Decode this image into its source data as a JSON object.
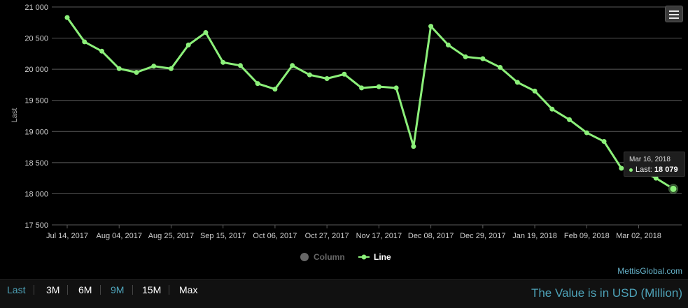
{
  "chart_data": {
    "type": "line",
    "ylabel": "Last",
    "xlabel": "",
    "title": "",
    "ylim": [
      17500,
      21000
    ],
    "yticks": [
      17500,
      18000,
      18500,
      19000,
      19500,
      20000,
      20500,
      21000
    ],
    "ytick_labels": [
      "17 500",
      "18 000",
      "18 500",
      "19 000",
      "19 500",
      "20 000",
      "20 500",
      "21 000"
    ],
    "x": [
      "Jul 14, 2017",
      "Jul 21, 2017",
      "Jul 28, 2017",
      "Aug 04, 2017",
      "Aug 11, 2017",
      "Aug 18, 2017",
      "Aug 25, 2017",
      "Sep 01, 2017",
      "Sep 08, 2017",
      "Sep 15, 2017",
      "Sep 22, 2017",
      "Sep 29, 2017",
      "Oct 06, 2017",
      "Oct 13, 2017",
      "Oct 20, 2017",
      "Oct 27, 2017",
      "Nov 03, 2017",
      "Nov 10, 2017",
      "Nov 17, 2017",
      "Nov 24, 2017",
      "Dec 01, 2017",
      "Dec 08, 2017",
      "Dec 15, 2017",
      "Dec 22, 2017",
      "Dec 29, 2017",
      "Jan 05, 2018",
      "Jan 12, 2018",
      "Jan 19, 2018",
      "Jan 26, 2018",
      "Feb 02, 2018",
      "Feb 09, 2018",
      "Feb 16, 2018",
      "Feb 23, 2018",
      "Mar 02, 2018",
      "Mar 09, 2018",
      "Mar 16, 2018"
    ],
    "xtick_labels": [
      "Jul 14, 2017",
      "Aug 04, 2017",
      "Aug 25, 2017",
      "Sep 15, 2017",
      "Oct 06, 2017",
      "Oct 27, 2017",
      "Nov 17, 2017",
      "Dec 08, 2017",
      "Dec 29, 2017",
      "Jan 19, 2018",
      "Feb 09, 2018",
      "Mar 02, 2018"
    ],
    "series": [
      {
        "name": "Line",
        "color": "#8cf07a",
        "values": [
          20830,
          20440,
          20290,
          20010,
          19950,
          20050,
          20010,
          20390,
          20590,
          20110,
          20060,
          19770,
          19680,
          20060,
          19910,
          19850,
          19920,
          19700,
          19720,
          19700,
          18760,
          20690,
          20390,
          20200,
          20170,
          20030,
          19790,
          19650,
          19360,
          19190,
          18980,
          18840,
          18410,
          18390,
          18250,
          18079
        ]
      }
    ],
    "grid": true,
    "legend": {
      "position": "bottom",
      "items": [
        {
          "label": "Column",
          "color": "#666666"
        },
        {
          "label": "Line",
          "color": "#8cf07a"
        }
      ]
    },
    "tooltip": {
      "date": "Mar 16, 2018",
      "label": "Last:",
      "value": "18 079"
    }
  },
  "credit": "MettisGlobal.com",
  "range_buttons": [
    {
      "label": "Last",
      "muted": true
    },
    {
      "label": "3M",
      "muted": false
    },
    {
      "label": "6M",
      "muted": false
    },
    {
      "label": "9M",
      "muted": true
    },
    {
      "label": "15M",
      "muted": false
    },
    {
      "label": "Max",
      "muted": false
    }
  ],
  "value_note": "The Value is in USD (Million)",
  "menu_icon": "hamburger-icon"
}
